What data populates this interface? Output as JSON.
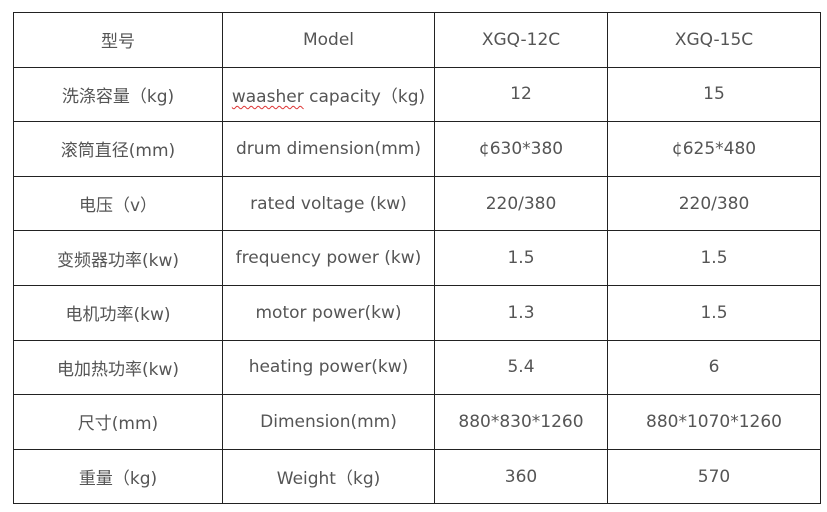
{
  "table": {
    "header": [
      "型号",
      "Model",
      "XGQ-12C",
      "XGQ-15C"
    ],
    "rows": [
      {
        "cn": "洗涤容量（kg)",
        "en_prefix": "waasher",
        "en_rest": " capacity（kg)",
        "a": "12",
        "b": "15"
      },
      {
        "cn": "滚筒直径(mm)",
        "en": "drum dimension(mm)",
        "a": "¢630*380",
        "b": "¢625*480"
      },
      {
        "cn": "电压（v）",
        "en": "rated voltage (kw)",
        "a": "220/380",
        "b": "220/380"
      },
      {
        "cn": "变频器功率(kw)",
        "en": "frequency power (kw)",
        "a": "1.5",
        "b": "1.5"
      },
      {
        "cn": "电机功率(kw)",
        "en": "motor power(kw)",
        "a": "1.3",
        "b": "1.5"
      },
      {
        "cn": "电加热功率(kw)",
        "en": "heating power(kw)",
        "a": "5.4",
        "b": "6"
      },
      {
        "cn": "尺寸(mm)",
        "en": "Dimension(mm)",
        "a": "880*830*1260",
        "b": "880*1070*1260"
      },
      {
        "cn": "重量（kg)",
        "en": "Weight（kg)",
        "a": "360",
        "b": "570"
      }
    ]
  }
}
